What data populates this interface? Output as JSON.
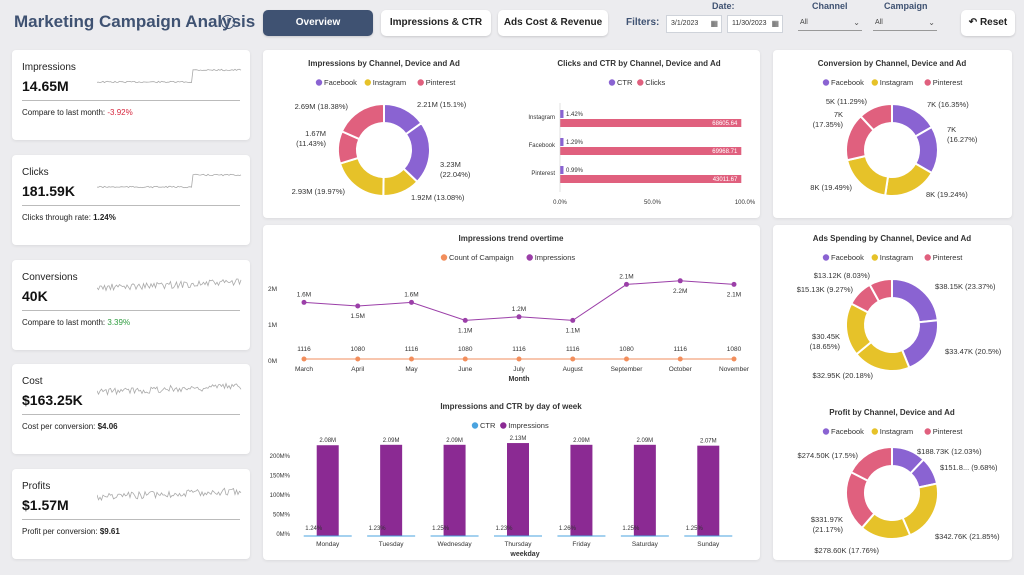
{
  "header": {
    "title": "Marketing Campaign Analysis",
    "info_icon": "i",
    "tabs": [
      "Overview",
      "Impressions & CTR",
      "Ads Cost & Revenue"
    ],
    "filters_label": "Filters:",
    "date_label": "Date:",
    "date_from": "3/1/2023",
    "date_to": "11/30/2023",
    "channel_label": "Channel",
    "channel_value": "All",
    "campaign_label": "Campaign",
    "campaign_value": "All",
    "reset_label": "Reset",
    "reset_icon": "↶",
    "calendar_icon": "▦",
    "chevron_icon": "⌄"
  },
  "colors": {
    "facebook": "#8a63d2",
    "instagram": "#e6c229",
    "pinterest": "#e0607e",
    "count": "#f28e5c",
    "impressions_line": "#9b3fa8",
    "bar": "#8b2a93",
    "ctr": "#4aa3df"
  },
  "kpis": [
    {
      "label": "Impressions",
      "value": "14.65M",
      "sub_prefix": "Compare to last month: ",
      "sub_value": "-3.92%",
      "sub_style": "neg"
    },
    {
      "label": "Clicks",
      "value": "181.59K",
      "sub_prefix": "Clicks through rate: ",
      "sub_value": "1.24%",
      "sub_style": "bold"
    },
    {
      "label": "Conversions",
      "value": "40K",
      "sub_prefix": "Compare to last month: ",
      "sub_value": "3.39%",
      "sub_style": "pos"
    },
    {
      "label": "Cost",
      "value": "$163.25K",
      "sub_prefix": "Cost per conversion: ",
      "sub_value": "$4.06",
      "sub_style": "bold"
    },
    {
      "label": "Profits",
      "value": "$1.57M",
      "sub_prefix": "Profit per conversion: ",
      "sub_value": "$9.61",
      "sub_style": "bold"
    }
  ],
  "legend_channels": [
    "Facebook",
    "Instagram",
    "Pinterest"
  ],
  "chart_data": [
    {
      "type": "pie",
      "title": "Impressions by Channel, Device and Ad",
      "segments": [
        {
          "channel": "Facebook",
          "value": 2.21,
          "label": "2.21M (15.1%)"
        },
        {
          "channel": "Facebook",
          "value": 3.23,
          "label": "3.23M (22.04%)"
        },
        {
          "channel": "Instagram",
          "value": 1.92,
          "label": "1.92M (13.08%)"
        },
        {
          "channel": "Instagram",
          "value": 2.93,
          "label": "2.93M (19.97%)"
        },
        {
          "channel": "Pinterest",
          "value": 1.67,
          "label": "1.67M (11.43%)"
        },
        {
          "channel": "Pinterest",
          "value": 2.69,
          "label": "2.69M (18.38%)"
        }
      ]
    },
    {
      "type": "bar",
      "title": "Clicks and CTR by Channel, Device and Ad",
      "legend": [
        "CTR",
        "Clicks"
      ],
      "categories": [
        "Instagram",
        "Facebook",
        "Pinterest"
      ],
      "ctr_labels": [
        "1.42%",
        "1.29%",
        "0.99%"
      ],
      "clicks_labels": [
        "68605.64",
        "69968.71",
        "43011.67"
      ],
      "clicks_pct": [
        98,
        98,
        98
      ],
      "ctr_pct": [
        1.42,
        1.29,
        0.99
      ],
      "x_ticks": [
        "0.0%",
        "50.0%",
        "100.0%"
      ]
    },
    {
      "type": "pie",
      "title": "Conversion by Channel, Device and Ad",
      "segments": [
        {
          "channel": "Facebook",
          "value": 7,
          "label": "7K (16.35%)"
        },
        {
          "channel": "Facebook",
          "value": 7,
          "label": "7K (16.27%)"
        },
        {
          "channel": "Instagram",
          "value": 8,
          "label": "8K (19.24%)"
        },
        {
          "channel": "Instagram",
          "value": 8,
          "label": "8K (19.49%)"
        },
        {
          "channel": "Pinterest",
          "value": 7,
          "label": "7K (17.35%)"
        },
        {
          "channel": "Pinterest",
          "value": 5,
          "label": "5K (11.29%)"
        }
      ]
    },
    {
      "type": "line",
      "title": "Impressions trend overtime",
      "legend": [
        "Count of Campaign",
        "Impressions"
      ],
      "xlabel": "Month",
      "categories": [
        "March",
        "April",
        "May",
        "June",
        "July",
        "August",
        "September",
        "October",
        "November"
      ],
      "impressions": [
        1.6,
        1.5,
        1.6,
        1.1,
        1.2,
        1.1,
        2.1,
        2.2,
        2.1
      ],
      "impression_labels": [
        "1.6M",
        "1.5M",
        "1.6M",
        "1.1M",
        "1.2M",
        "1.1M",
        "2.1M",
        "2.2M",
        "2.1M"
      ],
      "count": [
        1116,
        1080,
        1116,
        1080,
        1116,
        1116,
        1080,
        1116,
        1080
      ],
      "y_ticks": [
        "2M",
        "1M",
        "0M"
      ],
      "ylim": [
        0,
        2.5
      ]
    },
    {
      "type": "bar",
      "title": "Impressions and CTR by day of week",
      "legend": [
        "CTR",
        "Impressions"
      ],
      "xlabel": "weekday",
      "categories": [
        "Monday",
        "Tuesday",
        "Wednesday",
        "Thursday",
        "Friday",
        "Saturday",
        "Sunday"
      ],
      "impressions": [
        2.08,
        2.09,
        2.09,
        2.13,
        2.09,
        2.09,
        2.07
      ],
      "impression_labels": [
        "2.08M",
        "2.09M",
        "2.09M",
        "2.13M",
        "2.09M",
        "2.09M",
        "2.07M"
      ],
      "ctr": [
        1.24,
        1.23,
        1.25,
        1.23,
        1.26,
        1.25,
        1.25
      ],
      "ctr_labels": [
        "1.24%",
        "1.23%",
        "1.25%",
        "1.23%",
        "1.26%",
        "1.25%",
        "1.25%"
      ],
      "y_ticks": [
        "200M%",
        "150M%",
        "100M%",
        "50M%",
        "0M%"
      ]
    },
    {
      "type": "pie",
      "title": "Ads Spending by Channel, Device and Ad",
      "segments": [
        {
          "channel": "Facebook",
          "value": 38.15,
          "label": "$38.15K (23.37%)"
        },
        {
          "channel": "Facebook",
          "value": 33.47,
          "label": "$33.47K (20.5%)"
        },
        {
          "channel": "Instagram",
          "value": 32.95,
          "label": "$32.95K (20.18%)"
        },
        {
          "channel": "Instagram",
          "value": 30.45,
          "label": "$30.45K (18.65%)"
        },
        {
          "channel": "Pinterest",
          "value": 15.13,
          "label": "$15.13K (9.27%)"
        },
        {
          "channel": "Pinterest",
          "value": 13.12,
          "label": "$13.12K (8.03%)"
        }
      ]
    },
    {
      "type": "pie",
      "title": "Profit by Channel, Device and Ad",
      "segments": [
        {
          "channel": "Facebook",
          "value": 188.73,
          "label": "$188.73K (12.03%)"
        },
        {
          "channel": "Facebook",
          "value": 151.8,
          "label": "$151.8... (9.68%)"
        },
        {
          "channel": "Instagram",
          "value": 342.76,
          "label": "$342.76K (21.85%)"
        },
        {
          "channel": "Instagram",
          "value": 278.6,
          "label": "$278.60K (17.76%)"
        },
        {
          "channel": "Pinterest",
          "value": 331.97,
          "label": "$331.97K (21.17%)"
        },
        {
          "channel": "Pinterest",
          "value": 274.5,
          "label": "$274.50K (17.5%)"
        }
      ]
    }
  ]
}
